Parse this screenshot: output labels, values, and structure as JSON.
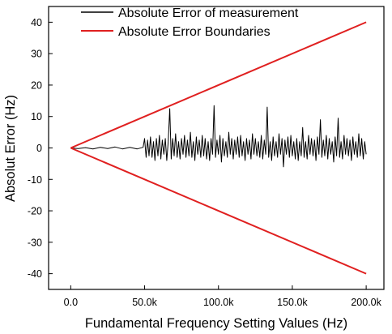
{
  "chart_data": {
    "type": "line",
    "xlabel": "Fundamental Frequency Setting Values (Hz)",
    "ylabel": "Absolut Error (Hz)",
    "xlim": [
      -15000,
      212000
    ],
    "ylim": [
      -45,
      45
    ],
    "x_ticks": [
      0,
      50000,
      100000,
      150000,
      200000
    ],
    "x_tick_labels": [
      "0.0",
      "50.0k",
      "100.0k",
      "150.0k",
      "200.0k"
    ],
    "y_ticks": [
      -40,
      -30,
      -20,
      -10,
      0,
      10,
      20,
      30,
      40
    ],
    "y_tick_labels": [
      "-40",
      "-30",
      "-20",
      "-10",
      "0",
      "10",
      "20",
      "30",
      "40"
    ],
    "legend_position": "top",
    "grid": false,
    "series": [
      {
        "name": "Absolute Error of measurement",
        "color": "#000000",
        "x": [
          0,
          5000,
          10000,
          15000,
          20000,
          25000,
          30000,
          35000,
          40000,
          45000,
          49000,
          50000,
          51000,
          52000,
          53000,
          54000,
          55000,
          56000,
          57000,
          58000,
          59000,
          60000,
          61000,
          62000,
          63000,
          64000,
          65000,
          66000,
          67000,
          68000,
          69000,
          70000,
          71000,
          72000,
          73000,
          74000,
          75000,
          76000,
          77000,
          78000,
          79000,
          80000,
          81000,
          82000,
          83000,
          84000,
          85000,
          86000,
          87000,
          88000,
          89000,
          90000,
          91000,
          92000,
          93000,
          94000,
          95000,
          96000,
          97000,
          98000,
          99000,
          100000,
          101000,
          102000,
          103000,
          104000,
          105000,
          106000,
          107000,
          108000,
          109000,
          110000,
          111000,
          112000,
          113000,
          114000,
          115000,
          116000,
          117000,
          118000,
          119000,
          120000,
          121000,
          122000,
          123000,
          124000,
          125000,
          126000,
          127000,
          128000,
          129000,
          130000,
          131000,
          132000,
          133000,
          134000,
          135000,
          136000,
          137000,
          138000,
          139000,
          140000,
          141000,
          142000,
          143000,
          144000,
          145000,
          146000,
          147000,
          148000,
          149000,
          150000,
          151000,
          152000,
          153000,
          154000,
          155000,
          156000,
          157000,
          158000,
          159000,
          160000,
          161000,
          162000,
          163000,
          164000,
          165000,
          166000,
          167000,
          168000,
          169000,
          170000,
          171000,
          172000,
          173000,
          174000,
          175000,
          176000,
          177000,
          178000,
          179000,
          180000,
          181000,
          182000,
          183000,
          184000,
          185000,
          186000,
          187000,
          188000,
          189000,
          190000,
          191000,
          192000,
          193000,
          194000,
          195000,
          196000,
          197000,
          198000,
          199000,
          200000
        ],
        "y": [
          0,
          -0.2,
          0.1,
          -0.3,
          0.2,
          -0.2,
          0.3,
          -0.3,
          0.2,
          -0.3,
          0.2,
          3,
          -3,
          2.5,
          -2.5,
          3.5,
          -3,
          2,
          -4,
          3,
          -2.5,
          4,
          -3.5,
          2.5,
          -2,
          3,
          -4,
          2,
          12.5,
          -3.5,
          3,
          -2.5,
          4.5,
          -3,
          2,
          -3.5,
          3,
          -2,
          4,
          -3,
          2.5,
          -2.5,
          5,
          -3,
          2,
          -4,
          3.5,
          -2,
          2.5,
          -3,
          4,
          -2.5,
          3,
          -3.5,
          2,
          -4,
          3,
          -2,
          13.5,
          -3,
          2.5,
          -2,
          4,
          -4.5,
          3,
          -2.5,
          2,
          -3,
          5,
          -2,
          3,
          -3.5,
          2.5,
          -2,
          3.5,
          -3,
          4,
          -2.5,
          2,
          -4,
          3,
          -2,
          2.5,
          -3.5,
          4.5,
          -2,
          3,
          -2.5,
          2,
          -3,
          4,
          -3.5,
          2.5,
          -2,
          13,
          -3,
          2,
          -4,
          3.5,
          -2.5,
          2,
          -3,
          4.5,
          -2,
          3,
          -6,
          2.5,
          -2,
          3.5,
          -3,
          4,
          -2.5,
          2,
          -3.5,
          3,
          -4,
          2,
          -2.5,
          6.5,
          -3,
          2,
          -3.5,
          4,
          -2,
          3,
          -2.5,
          2.5,
          -4,
          3.5,
          -2,
          9,
          -3,
          2.5,
          -2.5,
          4,
          -3.5,
          3,
          -2,
          2,
          -4.5,
          3.5,
          -2.5,
          9.5,
          -3,
          2,
          -3.5,
          4,
          -2,
          3,
          -2.5,
          2.5,
          -4,
          3.5,
          -2,
          2,
          -3,
          4.5,
          -2.5,
          3,
          -3.5,
          2,
          -2
        ]
      },
      {
        "name": "Absolute Error Boundaries",
        "color": "#e02020",
        "segments": [
          {
            "x": [
              0,
              200000
            ],
            "y": [
              0,
              40
            ]
          },
          {
            "x": [
              0,
              200000
            ],
            "y": [
              0,
              -40
            ]
          }
        ]
      }
    ]
  }
}
